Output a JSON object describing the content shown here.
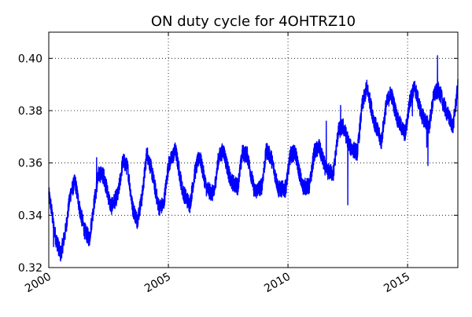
{
  "chart_data": {
    "type": "line",
    "title": "ON duty cycle for 4OHTRZ10",
    "xlabel": "",
    "ylabel": "",
    "x_axis_kind": "year",
    "xlim": [
      2000.0,
      2017.1
    ],
    "ylim": [
      0.32,
      0.41
    ],
    "x_ticks": [
      2000,
      2005,
      2010,
      2015
    ],
    "x_tick_labels": [
      "2000",
      "2005",
      "2010",
      "2015"
    ],
    "y_ticks": [
      0.32,
      0.34,
      0.36,
      0.38,
      0.4
    ],
    "y_tick_labels": [
      "0.32",
      "0.34",
      "0.36",
      "0.38",
      "0.40"
    ],
    "grid": true,
    "grid_style": "dotted",
    "legend": false,
    "colors": {
      "line": "#0000ff",
      "grid": "#000000",
      "axes": "#000000",
      "background": "#ffffff"
    },
    "series": [
      {
        "line_width": 1.4,
        "x": [
          2000.0,
          2000.1,
          2000.2,
          2000.3,
          2000.5,
          2000.7,
          2000.9,
          2001.1,
          2001.3,
          2001.5,
          2001.7,
          2001.9,
          2002.1,
          2002.3,
          2002.6,
          2002.9,
          2003.1,
          2003.3,
          2003.5,
          2003.7,
          2003.9,
          2004.1,
          2004.3,
          2004.6,
          2004.8,
          2005.0,
          2005.3,
          2005.6,
          2005.9,
          2006.1,
          2006.3,
          2006.6,
          2006.9,
          2007.1,
          2007.3,
          2007.6,
          2007.9,
          2008.1,
          2008.3,
          2008.6,
          2008.9,
          2009.1,
          2009.3,
          2009.6,
          2009.9,
          2010.1,
          2010.3,
          2010.6,
          2010.9,
          2011.1,
          2011.3,
          2011.6,
          2011.9,
          2012.1,
          2012.3,
          2012.6,
          2012.9,
          2013.1,
          2013.3,
          2013.6,
          2013.9,
          2014.1,
          2014.3,
          2014.6,
          2014.9,
          2015.1,
          2015.3,
          2015.6,
          2015.9,
          2016.1,
          2016.3,
          2016.6,
          2016.9,
          2017.1
        ],
        "y": [
          0.348,
          0.343,
          0.336,
          0.331,
          0.325,
          0.334,
          0.348,
          0.353,
          0.342,
          0.334,
          0.331,
          0.345,
          0.356,
          0.355,
          0.343,
          0.348,
          0.361,
          0.358,
          0.343,
          0.338,
          0.347,
          0.364,
          0.357,
          0.343,
          0.344,
          0.359,
          0.365,
          0.349,
          0.344,
          0.356,
          0.363,
          0.35,
          0.348,
          0.362,
          0.365,
          0.353,
          0.351,
          0.364,
          0.363,
          0.349,
          0.351,
          0.365,
          0.362,
          0.35,
          0.35,
          0.363,
          0.364,
          0.351,
          0.351,
          0.364,
          0.366,
          0.357,
          0.356,
          0.372,
          0.374,
          0.366,
          0.364,
          0.382,
          0.389,
          0.376,
          0.368,
          0.382,
          0.387,
          0.376,
          0.371,
          0.384,
          0.389,
          0.378,
          0.374,
          0.386,
          0.388,
          0.38,
          0.374,
          0.389
        ]
      }
    ],
    "spikes": [
      {
        "x": 2000.2,
        "y": 0.328
      },
      {
        "x": 2002.0,
        "y": 0.362
      },
      {
        "x": 2011.6,
        "y": 0.376
      },
      {
        "x": 2012.2,
        "y": 0.382
      },
      {
        "x": 2012.5,
        "y": 0.344
      },
      {
        "x": 2015.2,
        "y": 0.378
      },
      {
        "x": 2015.8,
        "y": 0.366
      },
      {
        "x": 2015.85,
        "y": 0.359
      },
      {
        "x": 2016.25,
        "y": 0.401
      }
    ]
  }
}
